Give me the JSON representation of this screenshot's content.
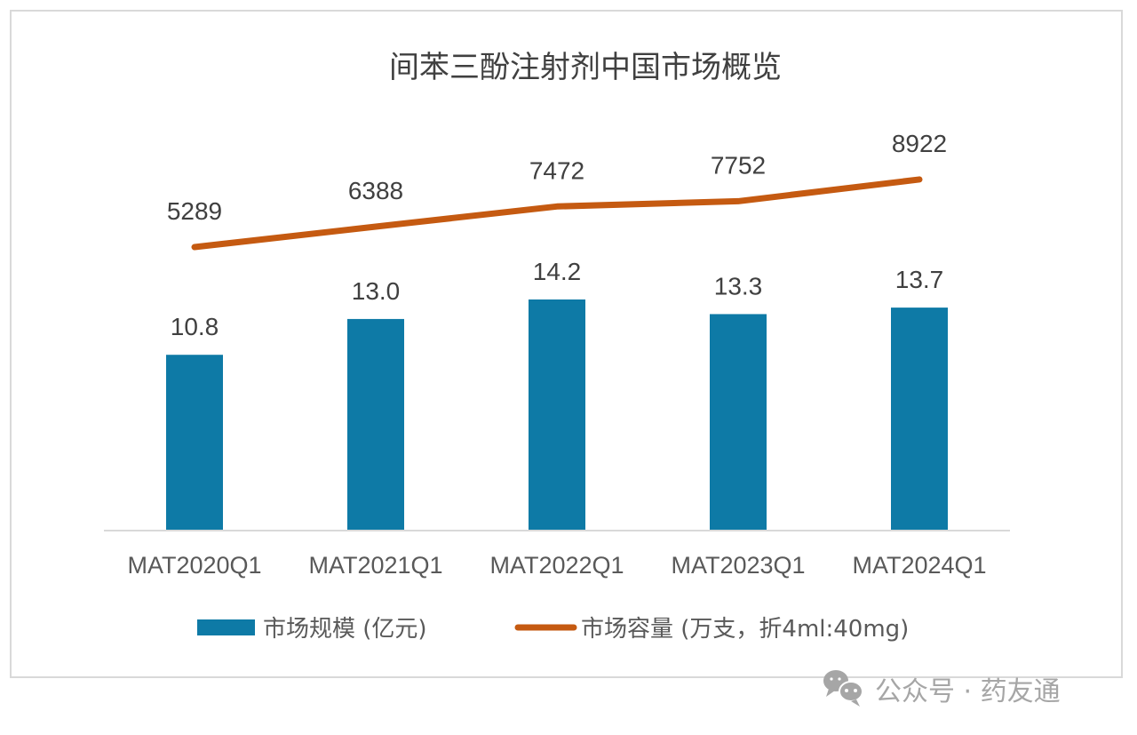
{
  "chart_data": {
    "type": "bar",
    "title": "间苯三酚注射剂中国市场概览",
    "categories": [
      "MAT2020Q1",
      "MAT2021Q1",
      "MAT2022Q1",
      "MAT2023Q1",
      "MAT2024Q1"
    ],
    "series": [
      {
        "name": "市场规模 (亿元)",
        "type": "bar",
        "axis": "primary",
        "color": "#0E7AA6",
        "values": [
          10.8,
          13.0,
          14.2,
          13.3,
          13.7
        ],
        "labels": [
          "10.8",
          "13.0",
          "14.2",
          "13.3",
          "13.7"
        ]
      },
      {
        "name": "市场容量 (万支，折4ml:40mg)",
        "type": "line",
        "axis": "secondary",
        "color": "#C55A11",
        "values": [
          5289,
          6388,
          7472,
          7752,
          8922
        ],
        "labels": [
          "5289",
          "6388",
          "7472",
          "7752",
          "8922"
        ]
      }
    ],
    "ylim": [
      0,
      25.5
    ],
    "y2lim": [
      -9945,
      12357
    ],
    "grid": false,
    "legend_position": "bottom",
    "xlabel": "",
    "ylabel": ""
  },
  "legend": {
    "bar_label": "市场规模 (亿元)",
    "line_label": "市场容量 (万支，折4ml:40mg)"
  },
  "watermark": {
    "text": "公众号 · 药友通"
  },
  "colors": {
    "bar": "#0E7AA6",
    "line": "#C55A11",
    "axis": "#d9d9d9"
  }
}
